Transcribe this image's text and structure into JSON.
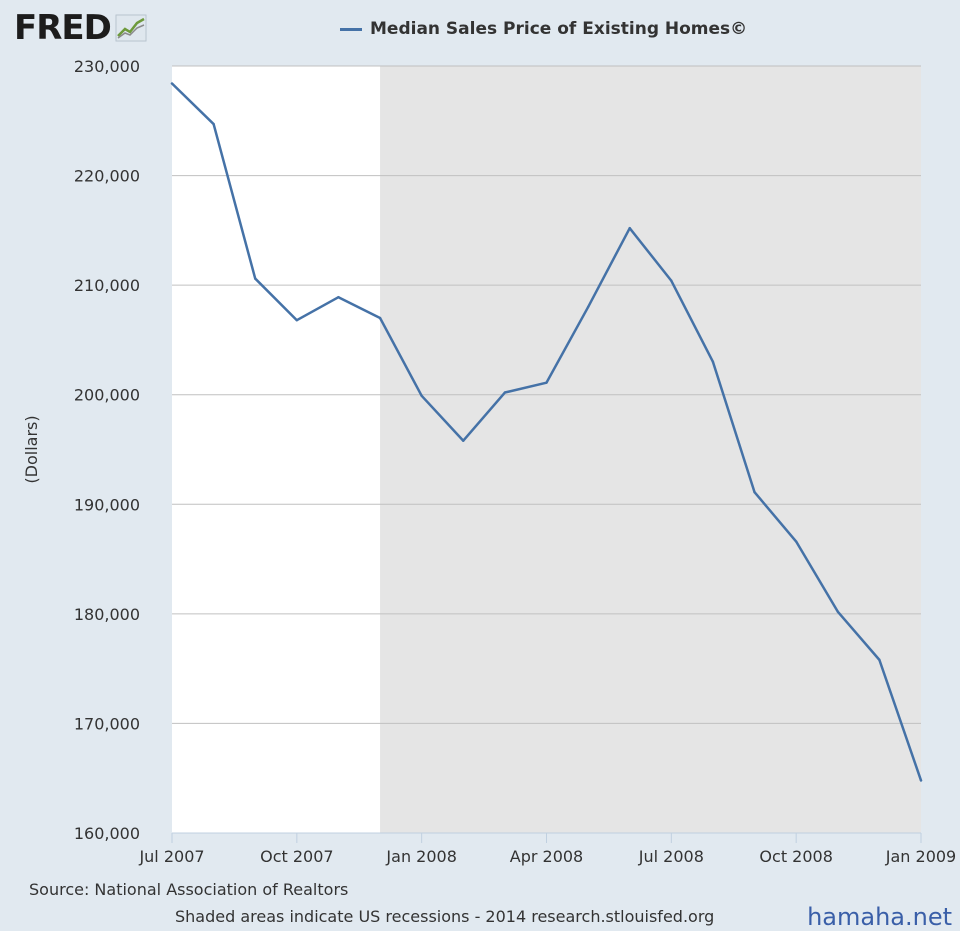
{
  "logo": {
    "text": "FRED"
  },
  "chart_data": {
    "type": "line",
    "title": "Median Sales Price of Existing Homes©",
    "xlabel": "",
    "ylabel": "(Dollars)",
    "x": [
      "2007-07",
      "2007-08",
      "2007-09",
      "2007-10",
      "2007-11",
      "2007-12",
      "2008-01",
      "2008-02",
      "2008-03",
      "2008-04",
      "2008-05",
      "2008-06",
      "2008-07",
      "2008-08",
      "2008-09",
      "2008-10",
      "2008-11",
      "2008-12",
      "2009-01"
    ],
    "x_tick_labels": [
      "Jul 2007",
      "Oct 2007",
      "Jan 2008",
      "Apr 2008",
      "Jul 2008",
      "Oct 2008",
      "Jan 2009"
    ],
    "x_tick_dates": [
      "2007-07",
      "2007-10",
      "2008-01",
      "2008-04",
      "2008-07",
      "2008-10",
      "2009-01"
    ],
    "y_tick_labels": [
      "230,000",
      "220,000",
      "210,000",
      "200,000",
      "190,000",
      "180,000",
      "170,000",
      "160,000"
    ],
    "ylim": [
      160000,
      230000
    ],
    "series": [
      {
        "name": "Median Sales Price of Existing Homes©",
        "color": "#4572a7",
        "values": [
          228400,
          224700,
          210600,
          206800,
          208900,
          207000,
          199900,
          195800,
          200200,
          201100,
          208000,
          215200,
          210400,
          203000,
          191100,
          186600,
          180200,
          175800,
          164800
        ]
      }
    ],
    "recession_shading": {
      "from": "2007-12",
      "to": "2009-01",
      "color": "#e5e5e5"
    },
    "grid": true
  },
  "footer": {
    "source": "Source: National Association of Realtors",
    "note": "Shaded areas indicate US recessions - 2014 research.stlouisfed.org"
  },
  "watermark": "hamaha.net"
}
